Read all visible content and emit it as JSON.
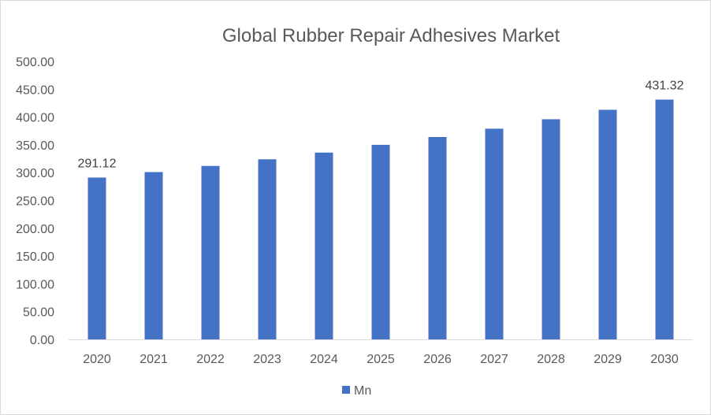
{
  "chart_data": {
    "type": "bar",
    "title": "Global Rubber Repair Adhesives Market",
    "xlabel": "",
    "ylabel": "",
    "categories": [
      "2020",
      "2021",
      "2022",
      "2023",
      "2024",
      "2025",
      "2026",
      "2027",
      "2028",
      "2029",
      "2030"
    ],
    "series": [
      {
        "name": "Mn",
        "color": "#4472c4",
        "values": [
          291.12,
          301.0,
          312.0,
          324.0,
          336.0,
          350.0,
          364.0,
          379.0,
          396.0,
          413.0,
          431.32
        ]
      }
    ],
    "data_labels": [
      {
        "category": "2020",
        "text": "291.12"
      },
      {
        "category": "2030",
        "text": "431.32"
      }
    ],
    "ylim": [
      0,
      500
    ],
    "yticks": [
      "0.00",
      "50.00",
      "100.00",
      "150.00",
      "200.00",
      "250.00",
      "300.00",
      "350.00",
      "400.00",
      "450.00",
      "500.00"
    ],
    "grid": false,
    "legend_position": "bottom"
  }
}
